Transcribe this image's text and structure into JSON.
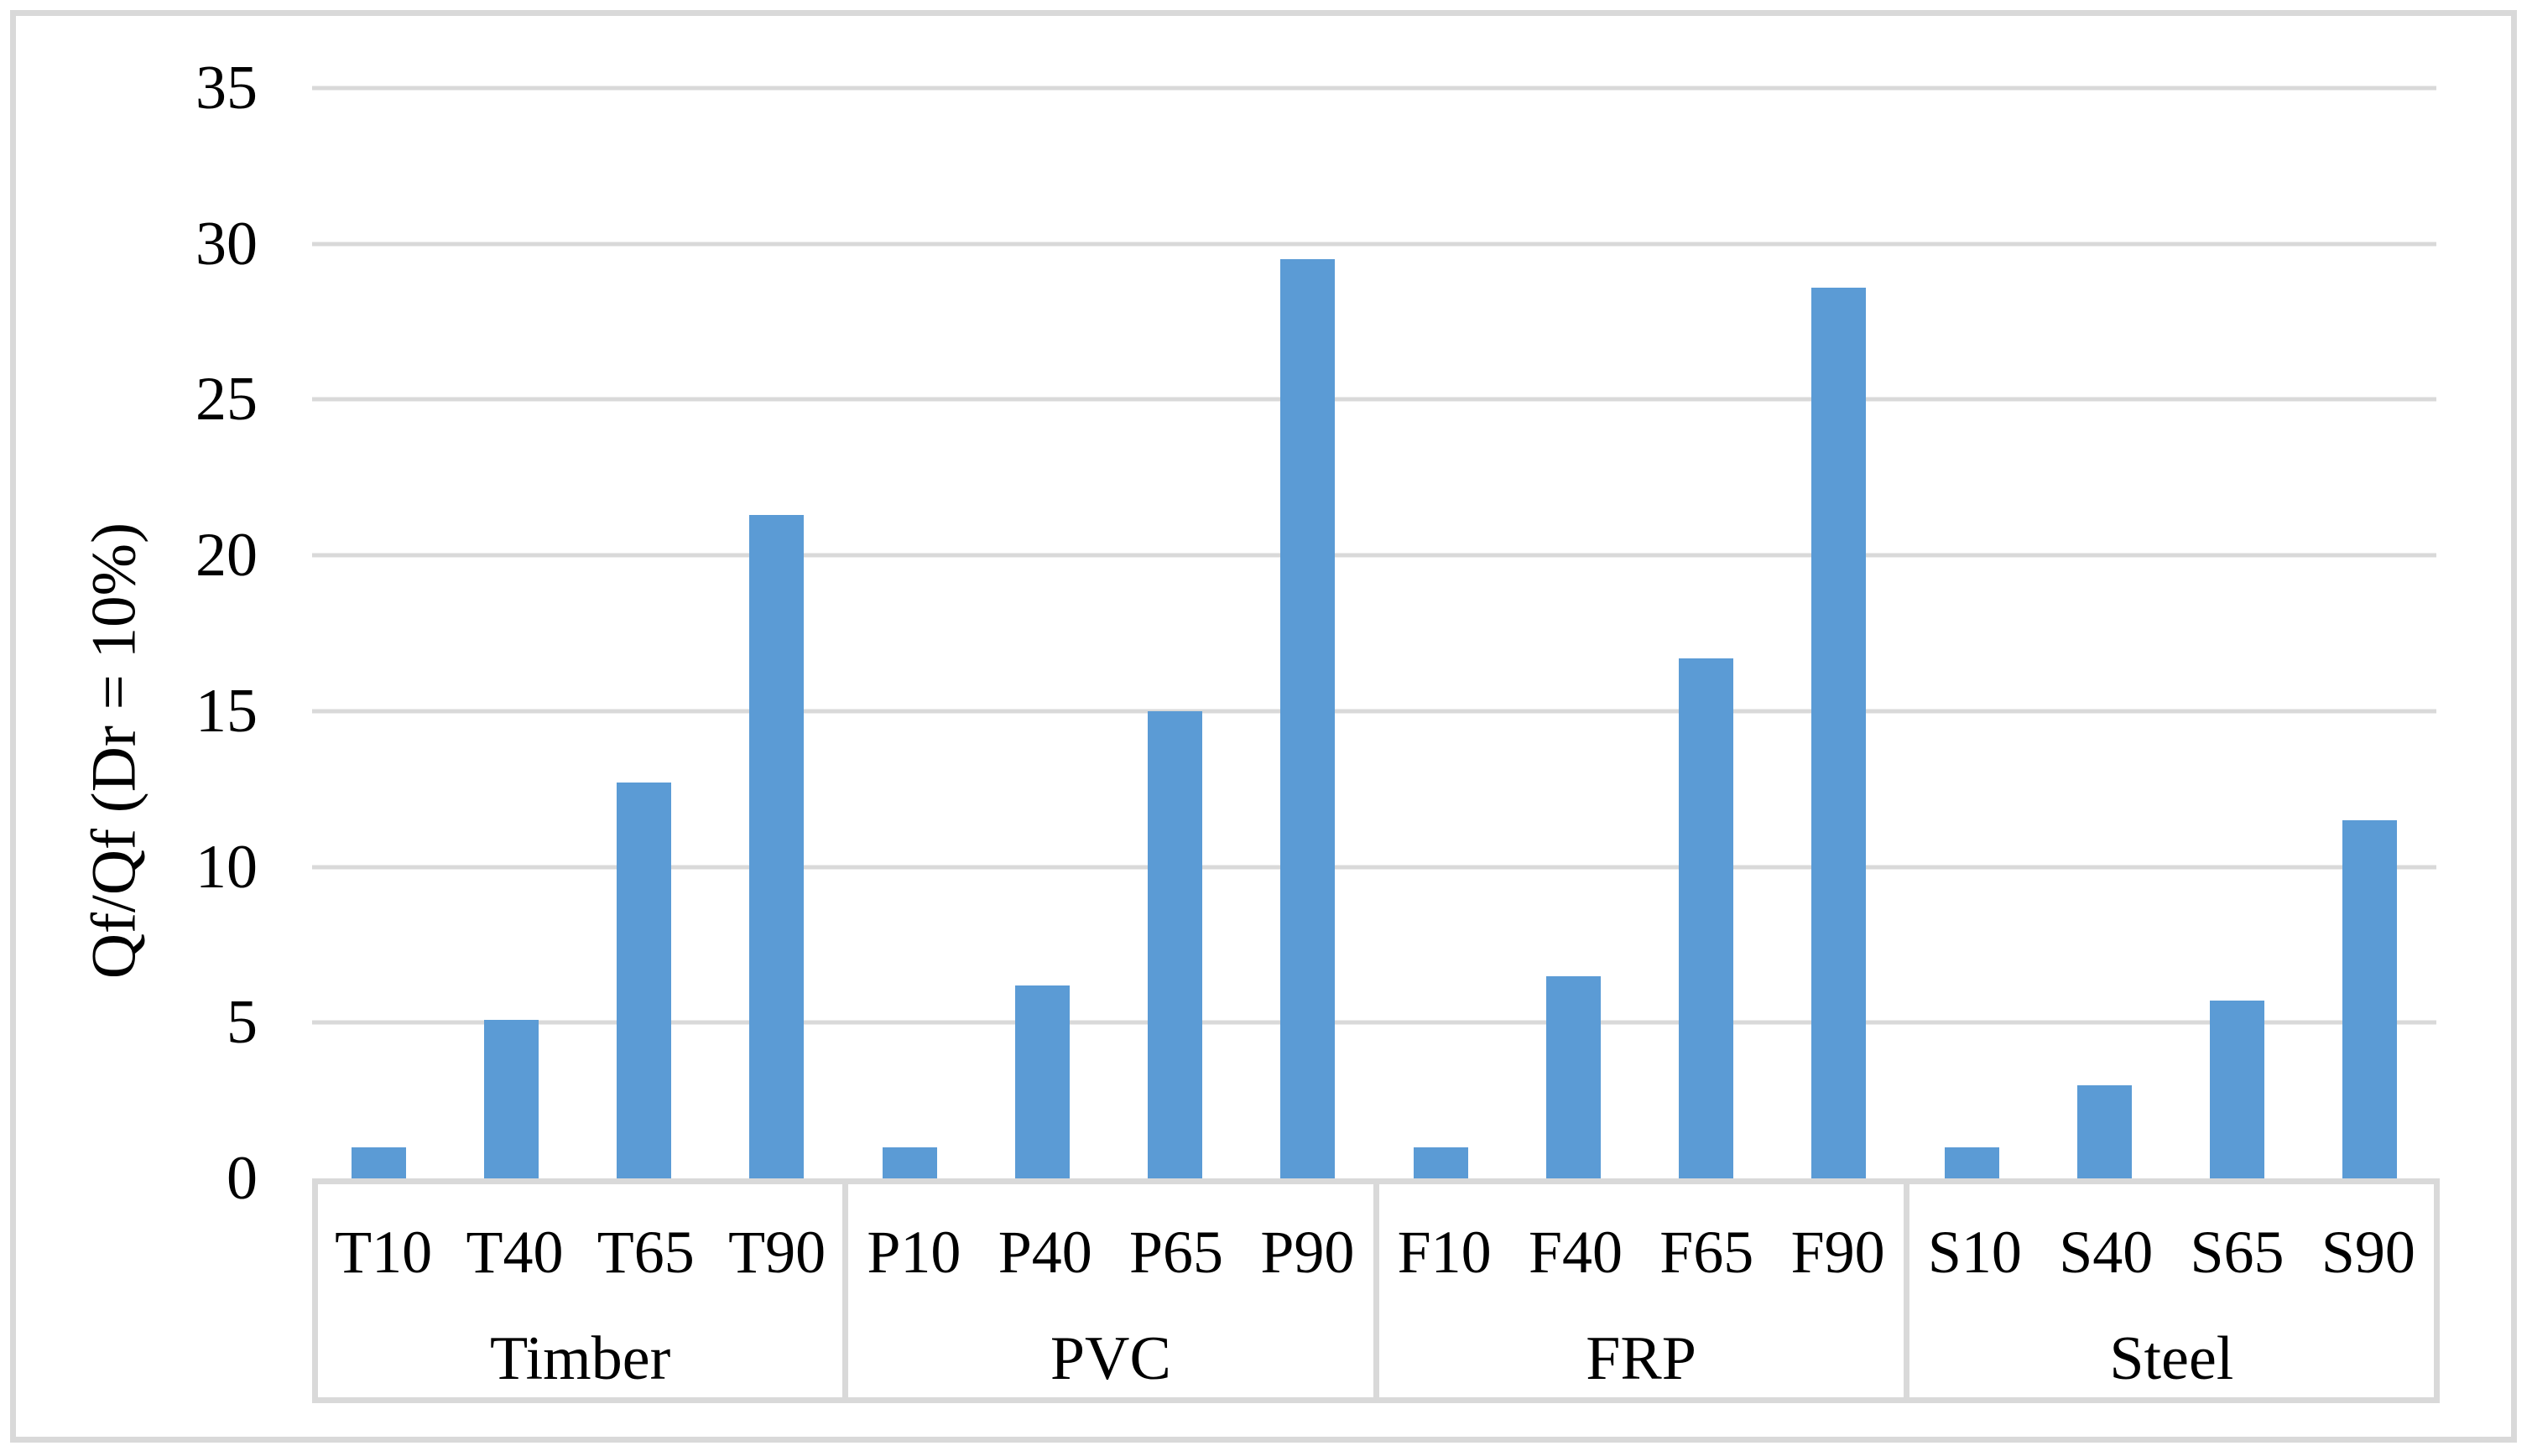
{
  "figure": {
    "background": "#FFFFFF"
  },
  "chart_data": {
    "type": "bar",
    "title": "",
    "xlabel": "",
    "ylabel": "Qf/Qf (Dr = 10%)",
    "ylim": [
      0,
      35
    ],
    "ytick_step": 5,
    "grid": true,
    "legend": false,
    "groups": [
      {
        "label": "Timber",
        "categories": [
          "T10",
          "T40",
          "T65",
          "T90"
        ],
        "values": [
          1.0,
          5.1,
          12.7,
          21.3
        ]
      },
      {
        "label": "PVC",
        "categories": [
          "P10",
          "P40",
          "P65",
          "P90"
        ],
        "values": [
          1.0,
          6.2,
          15.0,
          29.5
        ]
      },
      {
        "label": "FRP",
        "categories": [
          "F10",
          "F40",
          "F65",
          "F90"
        ],
        "values": [
          1.0,
          6.5,
          16.7,
          28.6
        ]
      },
      {
        "label": "Steel",
        "categories": [
          "S10",
          "S40",
          "S65",
          "S90"
        ],
        "values": [
          1.0,
          3.0,
          5.7,
          11.5
        ]
      }
    ],
    "colors": {
      "bar": "#5B9BD5",
      "gridline": "#D9D9D9",
      "axis_border": "#D9D9D9",
      "text": "#000000",
      "background": "#FFFFFF"
    }
  }
}
